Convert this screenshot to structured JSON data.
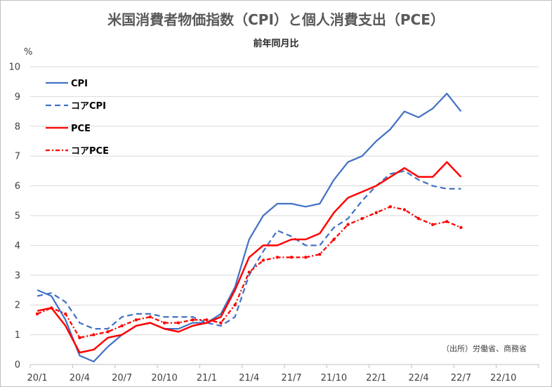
{
  "chart_data": {
    "type": "line",
    "title": "米国消費者物価指数（CPI）と個人消費支出（PCE）",
    "subtitle": "前年同月比",
    "ylabel": "%",
    "source": "（出所）労働省、商務省",
    "ylim": [
      0,
      10
    ],
    "yticks": [
      "0",
      "1",
      "2",
      "3",
      "4",
      "5",
      "6",
      "7",
      "8",
      "9",
      "10"
    ],
    "x_range": [
      "2020-01",
      "2022-12"
    ],
    "xticks": [
      {
        "label": "20/1",
        "month": 0
      },
      {
        "label": "20/4",
        "month": 3
      },
      {
        "label": "20/7",
        "month": 6
      },
      {
        "label": "20/10",
        "month": 9
      },
      {
        "label": "21/1",
        "month": 12
      },
      {
        "label": "21/4",
        "month": 15
      },
      {
        "label": "21/7",
        "month": 18
      },
      {
        "label": "21/10",
        "month": 21
      },
      {
        "label": "22/1",
        "month": 24
      },
      {
        "label": "22/4",
        "month": 27
      },
      {
        "label": "22/7",
        "month": 30
      },
      {
        "label": "22/10",
        "month": 33
      }
    ],
    "x": [
      "20/1",
      "20/2",
      "20/3",
      "20/4",
      "20/5",
      "20/6",
      "20/7",
      "20/8",
      "20/9",
      "20/10",
      "20/11",
      "20/12",
      "21/1",
      "21/2",
      "21/3",
      "21/4",
      "21/5",
      "21/6",
      "21/7",
      "21/8",
      "21/9",
      "21/10",
      "21/11",
      "21/12",
      "22/1",
      "22/2",
      "22/3",
      "22/4",
      "22/5",
      "22/6",
      "22/7"
    ],
    "grid": "horizontal",
    "legend_position": "top-left",
    "series": [
      {
        "name": "CPI",
        "color": "#4472C4",
        "style": "solid",
        "values": [
          2.5,
          2.3,
          1.5,
          0.3,
          0.1,
          0.6,
          1.0,
          1.3,
          1.4,
          1.2,
          1.2,
          1.4,
          1.4,
          1.7,
          2.6,
          4.2,
          5.0,
          5.4,
          5.4,
          5.3,
          5.4,
          6.2,
          6.8,
          7.0,
          7.5,
          7.9,
          8.5,
          8.3,
          8.6,
          9.1,
          8.5
        ]
      },
      {
        "name": "コアCPI",
        "color": "#4472C4",
        "style": "dashed",
        "values": [
          2.3,
          2.4,
          2.1,
          1.4,
          1.2,
          1.2,
          1.6,
          1.7,
          1.7,
          1.6,
          1.6,
          1.6,
          1.4,
          1.3,
          1.6,
          3.0,
          3.8,
          4.5,
          4.3,
          4.0,
          4.0,
          4.6,
          4.9,
          5.5,
          6.0,
          6.4,
          6.5,
          6.2,
          6.0,
          5.9,
          5.9
        ]
      },
      {
        "name": "PCE",
        "color": "#FF0000",
        "style": "solid",
        "values": [
          1.8,
          1.9,
          1.3,
          0.4,
          0.5,
          0.9,
          1.0,
          1.3,
          1.4,
          1.2,
          1.1,
          1.3,
          1.4,
          1.6,
          2.5,
          3.6,
          4.0,
          4.0,
          4.2,
          4.2,
          4.4,
          5.1,
          5.6,
          5.8,
          6.0,
          6.3,
          6.6,
          6.3,
          6.3,
          6.8,
          6.3
        ]
      },
      {
        "name": "コアPCE",
        "color": "#FF0000",
        "style": "dashdot",
        "values": [
          1.7,
          1.9,
          1.7,
          0.9,
          1.0,
          1.1,
          1.3,
          1.5,
          1.6,
          1.4,
          1.4,
          1.5,
          1.5,
          1.4,
          2.0,
          3.1,
          3.5,
          3.6,
          3.6,
          3.6,
          3.7,
          4.2,
          4.7,
          4.9,
          5.1,
          5.3,
          5.2,
          4.9,
          4.7,
          4.8,
          4.6
        ]
      }
    ]
  }
}
